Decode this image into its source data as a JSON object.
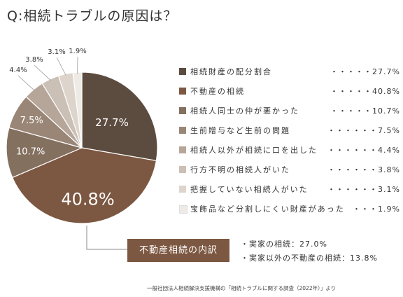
{
  "title": "Q:相続トラブルの原因は？",
  "chart_data": {
    "type": "pie",
    "title": "Q:相続トラブルの原因は？",
    "slices": [
      {
        "label": "相続財産の配分割合",
        "value": 27.7,
        "value_label": "27.7%",
        "leader": "・・・・・27.7%",
        "color": "#5c4b3f"
      },
      {
        "label": "不動産の相続",
        "value": 40.8,
        "value_label": "40.8%",
        "leader": "・・・・・40.8%",
        "color": "#7c5741"
      },
      {
        "label": "相続人同士の仲が悪かった",
        "value": 10.7,
        "value_label": "10.7%",
        "leader": "・・・・・10.7%",
        "color": "#84705f"
      },
      {
        "label": "生前贈与など生前の問題",
        "value": 7.5,
        "value_label": "7.5%",
        "leader": "・・・・・・7.5%",
        "color": "#9a8676"
      },
      {
        "label": "相続人以外が相続に口を出した",
        "value": 4.4,
        "value_label": "4.4%",
        "leader": "・・・・・・4.4%",
        "color": "#b6a699"
      },
      {
        "label": "行方不明の相続人がいた",
        "value": 3.8,
        "value_label": "3.8%",
        "leader": "・・・・・・3.8%",
        "color": "#cbc0b6"
      },
      {
        "label": "把握していない相続人がいた",
        "value": 3.1,
        "value_label": "3.1%",
        "leader": "・・・・・・3.1%",
        "color": "#ddd4cb"
      },
      {
        "label": "宝飾品など分割しにくい財産があった",
        "value": 1.9,
        "value_label": "1.9%",
        "leader": "・・・1.9%",
        "color": "#eeeae6"
      }
    ]
  },
  "breakdown": {
    "label": "不動産相続の内訳",
    "color": "#7c5741",
    "items": [
      "・実家の相続：27.0%",
      "・実家以外の不動産の相続：13.8%"
    ]
  },
  "source": "一般社団法人相続解決支援機構の「相続トラブルに関する調査（2022年）」より"
}
